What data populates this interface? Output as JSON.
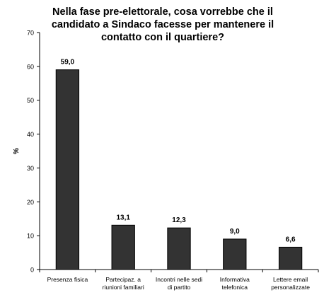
{
  "chart_data": {
    "type": "bar",
    "title": "Nella fase pre-elettorale, cosa vorrebbe che il candidato a Sindaco facesse per mantenere il contatto con il quartiere?",
    "ylabel": "%",
    "xlabel": "",
    "ylim": [
      0,
      70
    ],
    "yticks": [
      0,
      10,
      20,
      30,
      40,
      50,
      60,
      70
    ],
    "categories": [
      [
        "Presenza fisica"
      ],
      [
        "Partecipaz. a",
        "riunioni familiari"
      ],
      [
        "Incontri nelle sedi",
        "di partito"
      ],
      [
        "Informativa",
        "telefonica"
      ],
      [
        "Lettere email",
        "personalizzate"
      ]
    ],
    "values": [
      59.0,
      13.1,
      12.3,
      9.0,
      6.6
    ],
    "data_labels": [
      "59,0",
      "13,1",
      "12,3",
      "9,0",
      "6,6"
    ],
    "bar_color": "#333333",
    "grid": false
  }
}
